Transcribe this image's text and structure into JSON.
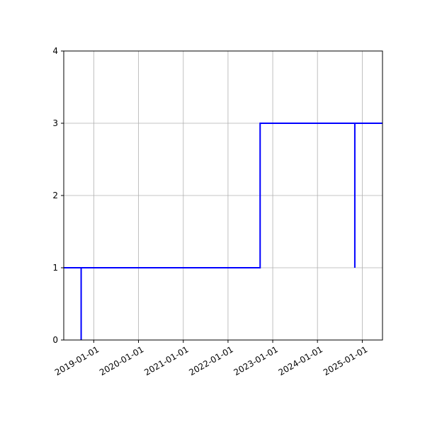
{
  "chart_data": {
    "type": "line",
    "title": "",
    "xlabel": "",
    "ylabel": "",
    "grid": true,
    "x_axis": {
      "type": "date",
      "range": [
        "2018-05-01",
        "2025-06-15"
      ],
      "ticks": [
        "2019-01-01",
        "2020-01-01",
        "2021-01-01",
        "2022-01-01",
        "2023-01-01",
        "2024-01-01",
        "2025-01-01"
      ]
    },
    "y_axis": {
      "range": [
        0,
        4
      ],
      "ticks": [
        0,
        1,
        2,
        3,
        4
      ],
      "tick_labels": [
        "0",
        "1",
        "2",
        "3",
        "4"
      ]
    },
    "series": [
      {
        "color": "#0000ff",
        "step": true,
        "points": [
          {
            "x": "2018-05-01",
            "y": 1
          },
          {
            "x": "2018-09-20",
            "y": 1
          },
          {
            "x": "2018-09-20",
            "y": 0
          },
          {
            "x": "2018-09-20",
            "y": 1
          },
          {
            "x": "2022-09-20",
            "y": 1
          },
          {
            "x": "2022-09-20",
            "y": 3
          },
          {
            "x": "2024-11-01",
            "y": 3
          },
          {
            "x": "2024-11-01",
            "y": 1
          },
          {
            "x": "2024-11-01",
            "y": 3
          },
          {
            "x": "2025-06-15",
            "y": 3
          }
        ]
      }
    ]
  }
}
